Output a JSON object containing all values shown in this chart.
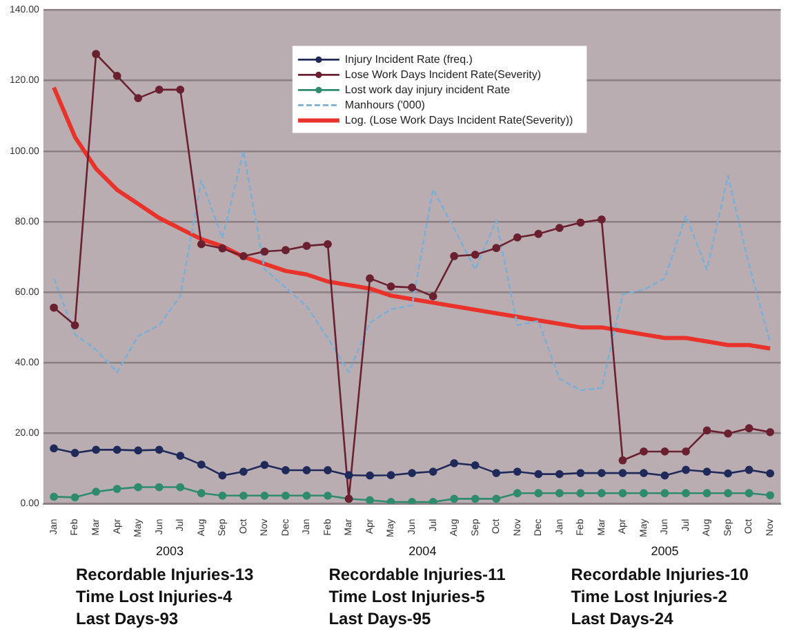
{
  "chart_data": {
    "type": "line",
    "categories": [
      "Jan",
      "Feb",
      "Mar",
      "Apr",
      "May",
      "Jun",
      "Jul",
      "Aug",
      "Sep",
      "Oct",
      "Nov",
      "Dec",
      "Jan",
      "Feb",
      "Mar",
      "Apr",
      "May",
      "Jun",
      "Jul",
      "Aug",
      "Sep",
      "Oct",
      "Nov",
      "Dec",
      "Jan",
      "Feb",
      "Mar",
      "Apr",
      "May",
      "Jun",
      "Jul",
      "Aug",
      "Sep",
      "Oct",
      "Nov"
    ],
    "series": [
      {
        "name": "Injury Incident Rate (freq.)",
        "color": "#1f2a5a",
        "marker": "circle",
        "values": [
          15.7,
          14.4,
          15.3,
          15.3,
          15.1,
          15.3,
          13.6,
          11.1,
          8.0,
          9.1,
          11.0,
          9.5,
          9.5,
          9.5,
          8.1,
          8.0,
          8.1,
          8.7,
          9.1,
          11.5,
          10.9,
          8.7,
          9.1,
          8.4,
          8.4,
          8.7,
          8.7,
          8.7,
          8.7,
          8.0,
          9.6,
          9.1,
          8.6,
          9.6,
          8.6
        ]
      },
      {
        "name": "Lose Work Days Incident Rate(Severity)",
        "color": "#6b2030",
        "marker": "circle",
        "values": [
          55.6,
          50.6,
          127.5,
          121.3,
          115.0,
          117.4,
          117.4,
          73.6,
          72.4,
          70.2,
          71.5,
          71.9,
          73.1,
          73.6,
          1.4,
          63.9,
          61.6,
          61.3,
          58.8,
          70.2,
          70.6,
          72.5,
          75.5,
          76.5,
          78.2,
          79.7,
          80.6,
          12.3,
          14.8,
          14.8,
          14.8,
          20.8,
          19.9,
          21.4,
          20.3
        ]
      },
      {
        "name": "Lost work day injury incident Rate",
        "color": "#2e8b6e",
        "marker": "circle",
        "values": [
          2.0,
          1.8,
          3.4,
          4.2,
          4.7,
          4.7,
          4.7,
          3.0,
          2.3,
          2.3,
          2.3,
          2.3,
          2.3,
          2.3,
          1.4,
          1.0,
          0.5,
          0.5,
          0.5,
          1.4,
          1.4,
          1.4,
          3.0,
          3.0,
          3.0,
          3.0,
          3.0,
          3.0,
          3.0,
          3.0,
          3.0,
          3.0,
          3.0,
          3.0,
          2.4
        ]
      },
      {
        "name": "Manhours ('000)",
        "color": "#7ab0d8",
        "marker": "none",
        "line_style": "dashed",
        "values": [
          63.9,
          48.0,
          43.7,
          37.3,
          47.5,
          50.6,
          58.9,
          91.7,
          75.3,
          100.0,
          66.5,
          61.3,
          56.0,
          47.0,
          37.3,
          51.3,
          55.1,
          56.3,
          89.2,
          78.0,
          66.4,
          80.3,
          50.6,
          51.8,
          35.4,
          32.2,
          32.8,
          59.4,
          60.7,
          63.9,
          81.6,
          66.4,
          93.0,
          67.7,
          45.6
        ]
      },
      {
        "name": "Log. (Lose Work Days Incident Rate(Severity))",
        "color": "#e8322a",
        "marker": "none",
        "values": [
          118,
          104,
          95,
          89,
          85,
          81,
          78,
          75,
          73,
          70,
          68,
          66,
          65,
          63,
          62,
          61,
          59,
          58,
          57,
          56,
          55,
          54,
          53,
          52,
          51,
          50,
          50,
          49,
          48,
          47,
          47,
          46,
          45,
          45,
          44
        ]
      }
    ],
    "ylim": [
      0,
      140
    ],
    "yticks": [
      {
        "value": 0,
        "label": "0.00"
      },
      {
        "value": 20,
        "label": "20.00"
      },
      {
        "value": 40,
        "label": "40.00"
      },
      {
        "value": 60,
        "label": "60.00"
      },
      {
        "value": 80,
        "label": "80.00"
      },
      {
        "value": 100,
        "label": "100.00"
      },
      {
        "value": 120,
        "label": "120.00"
      },
      {
        "value": 140,
        "label": "140.00"
      }
    ],
    "grid": "y",
    "legend": "top",
    "annotations": [
      "2003",
      "2004",
      "2005",
      "Recordable Injuries-13\nTime Lost Injuries-4\nLast Days-93",
      "Recordable Injuries-11\nTime Lost Injuries-5\nLast Days-95",
      "Recordable Injuries-10\nTime Lost Injuries-2\nLast Days-24"
    ]
  }
}
